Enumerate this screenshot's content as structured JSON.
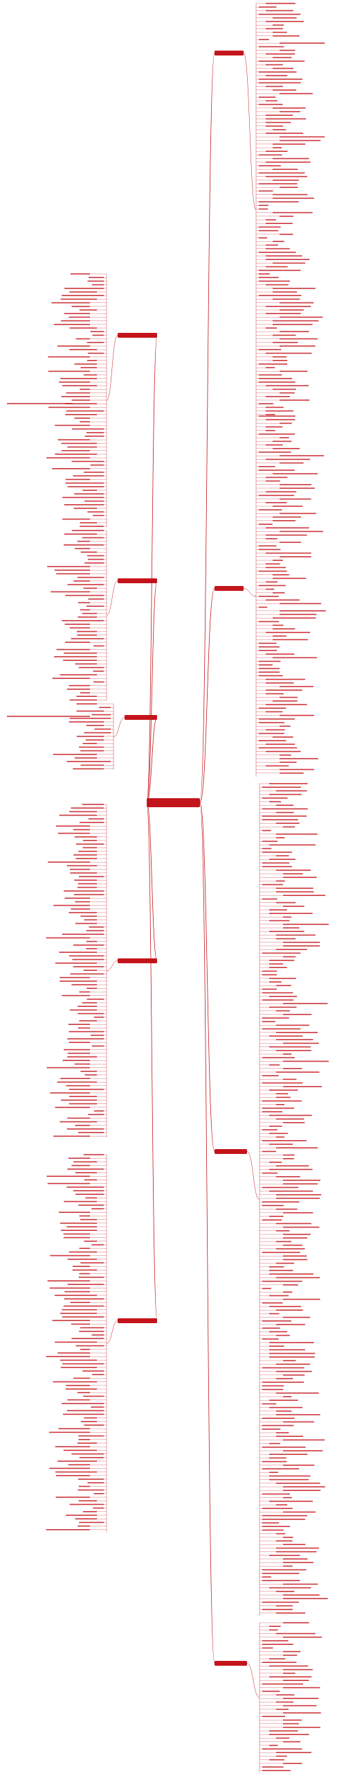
{
  "diagram": {
    "central": {
      "label": ""
    },
    "branches": [
      {
        "label": "",
        "side": "right"
      },
      {
        "label": "",
        "side": "right"
      },
      {
        "label": "",
        "side": "right"
      },
      {
        "label": "",
        "side": "right"
      },
      {
        "label": "",
        "side": "left"
      },
      {
        "label": "",
        "side": "left"
      },
      {
        "label": "",
        "side": "left"
      },
      {
        "label": "",
        "side": "left"
      },
      {
        "label": "",
        "side": "left"
      }
    ],
    "colors": {
      "primary": "#c4141b",
      "central_fill": "#c4141b",
      "line": "#c4141b",
      "background": "#ffffff"
    }
  }
}
